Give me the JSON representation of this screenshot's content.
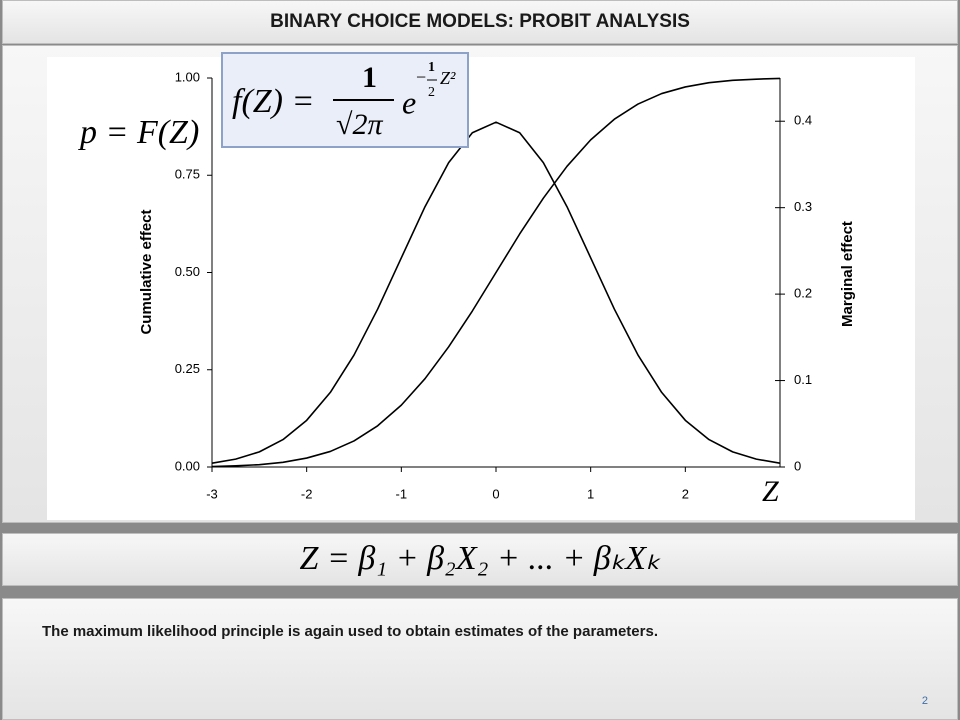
{
  "header": {
    "title": "BINARY CHOICE MODELS: PROBIT ANALYSIS"
  },
  "chart_data": {
    "type": "line",
    "x_label": "Z",
    "y_label": "Cumulative effect",
    "y2_label": "Marginal effect",
    "x": [
      -3,
      -2.75,
      -2.5,
      -2.25,
      -2,
      -1.75,
      -1.5,
      -1.25,
      -1,
      -0.75,
      -0.5,
      -0.25,
      0,
      0.25,
      0.5,
      0.75,
      1,
      1.25,
      1.5,
      1.75,
      2,
      2.25,
      2.5,
      2.75,
      3
    ],
    "series": [
      {
        "color": "#000000",
        "values": [
          0.001,
          0.003,
          0.006,
          0.012,
          0.023,
          0.04,
          0.067,
          0.106,
          0.159,
          0.227,
          0.309,
          0.401,
          0.5,
          0.599,
          0.691,
          0.773,
          0.841,
          0.894,
          0.933,
          0.96,
          0.977,
          0.988,
          0.994,
          0.997,
          0.999
        ]
      },
      {
        "color": "#000000",
        "axis": "y2",
        "values": [
          0.0044,
          0.0091,
          0.0175,
          0.0317,
          0.054,
          0.0863,
          0.1295,
          0.1827,
          0.242,
          0.3011,
          0.3521,
          0.3867,
          0.3989,
          0.3867,
          0.3521,
          0.3011,
          0.242,
          0.1827,
          0.1295,
          0.0863,
          0.054,
          0.0317,
          0.0175,
          0.0091,
          0.0044
        ]
      }
    ],
    "xlim": [
      -3,
      3
    ],
    "xticks": [
      -3,
      -2,
      -1,
      0,
      1,
      2
    ],
    "ylim": [
      0,
      1
    ],
    "yticks": [
      {
        "value": 0,
        "label": "0.00"
      },
      {
        "value": 0.25,
        "label": "0.25"
      },
      {
        "value": 0.5,
        "label": "0.50"
      },
      {
        "value": 0.75,
        "label": "0.75"
      },
      {
        "value": 1,
        "label": "1.00"
      }
    ],
    "y2lim": [
      0,
      0.45
    ],
    "y2ticks": [
      0,
      0.1,
      0.2,
      0.3,
      0.4
    ],
    "grid": false
  },
  "formulas": {
    "cdf": "p = F(Z)",
    "pdf": {
      "lhs": "f(Z) =",
      "numerator": "1",
      "denominator": "√2π",
      "base": "e",
      "sign": "−",
      "exp_numerator": "1",
      "exp_denominator": "2",
      "exp_variable": "Z²"
    }
  },
  "model_equation": "Z = β₁ + β₂X₂ + ... + βₖXₖ",
  "body_text": "The maximum likelihood principle is again used to obtain estimates of the parameters.",
  "page_number": "2"
}
